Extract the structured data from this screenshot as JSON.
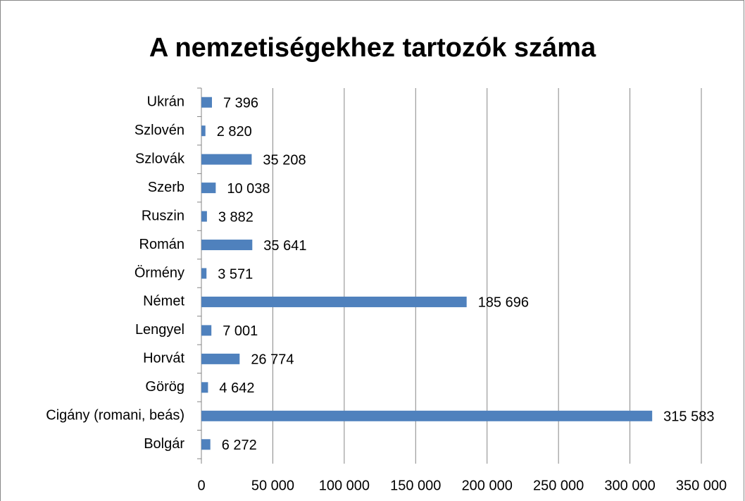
{
  "chart_data": {
    "type": "bar",
    "orientation": "horizontal",
    "title": "A nemzetiségekhez tartozók száma",
    "categories": [
      "Bolgár",
      "Cigány (romani, beás)",
      "Görög",
      "Horvát",
      "Lengyel",
      "Német",
      "Örmény",
      "Román",
      "Ruszin",
      "Szerb",
      "Szlovák",
      "Szlovén",
      "Ukrán"
    ],
    "values": [
      6272,
      315583,
      4642,
      26774,
      7001,
      185696,
      3571,
      35641,
      3882,
      10038,
      35208,
      2820,
      7396
    ],
    "value_labels": [
      "6 272",
      "315 583",
      "4 642",
      "26 774",
      "7 001",
      "185 696",
      "3 571",
      "35 641",
      "3 882",
      "10 038",
      "35 208",
      "2 820",
      "7 396"
    ],
    "color": "#4f81bd",
    "xlim": [
      0,
      350000
    ],
    "xticks": [
      0,
      {
        "value": 50000,
        "label": "50 000"
      },
      {
        "value": 100000,
        "label": "100 000"
      },
      {
        "value": 150000,
        "label": "150 000"
      },
      {
        "value": 200000,
        "label": "200 000"
      },
      {
        "value": 250000,
        "label": "250 000"
      },
      {
        "value": 300000,
        "label": "300 000"
      },
      {
        "value": 350000,
        "label": "350 000"
      }
    ],
    "grid": true
  }
}
